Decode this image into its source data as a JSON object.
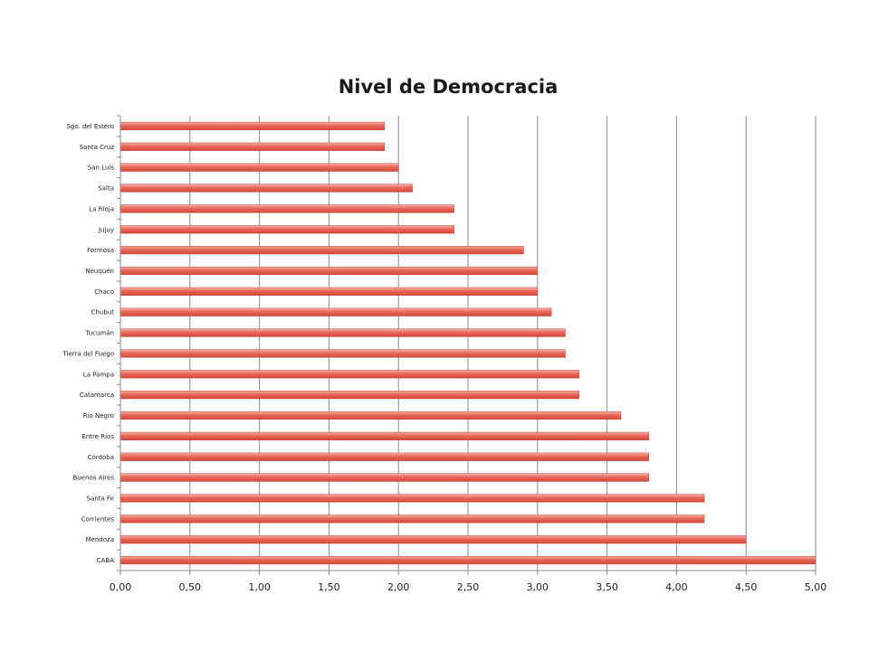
{
  "chart_data": {
    "type": "bar",
    "orientation": "horizontal",
    "title": "Nivel de Democracia",
    "xlabel": "",
    "ylabel": "",
    "xlim": [
      0,
      5
    ],
    "x_ticks": [
      "0,00",
      "0,50",
      "1,00",
      "1,50",
      "2,00",
      "2,50",
      "3,00",
      "3,50",
      "4,00",
      "4,50",
      "5,00"
    ],
    "grid": "vertical",
    "legend": "none",
    "bar_color": "#e8675a",
    "categories": [
      "Sgo. del Estero",
      "Santa Cruz",
      "San Luis",
      "Salta",
      "La Rioja",
      "Jujuy",
      "Formosa",
      "Neuquén",
      "Chaco",
      "Chubut",
      "Tucumán",
      "Tierra del Fuego",
      "La Pampa",
      "Catamarca",
      "Río Negro",
      "Entre Ríos",
      "Córdoba",
      "Buenos Aires",
      "Santa Fe",
      "Corrientes",
      "Mendoza",
      "CABA"
    ],
    "values": [
      1.9,
      1.9,
      2.0,
      2.1,
      2.4,
      2.4,
      2.9,
      3.0,
      3.0,
      3.1,
      3.2,
      3.2,
      3.3,
      3.3,
      3.6,
      3.8,
      3.8,
      3.8,
      4.2,
      4.2,
      4.5,
      5.0
    ]
  }
}
